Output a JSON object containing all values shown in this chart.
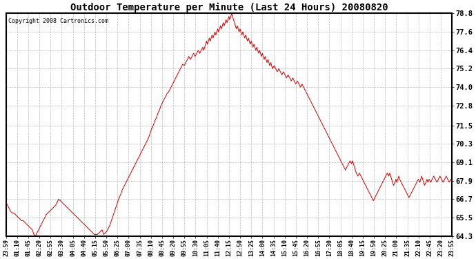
{
  "title": "Outdoor Temperature per Minute (Last 24 Hours) 20080820",
  "copyright": "Copyright 2008 Cartronics.com",
  "line_color": "#cc0000",
  "bg_color": "#ffffff",
  "plot_bg_color": "#ffffff",
  "grid_color": "#aaaaaa",
  "yticks": [
    64.3,
    65.5,
    66.7,
    67.9,
    69.1,
    70.3,
    71.5,
    72.8,
    74.0,
    75.2,
    76.4,
    77.6,
    78.8
  ],
  "xtick_labels": [
    "23:59",
    "01:10",
    "01:45",
    "02:20",
    "02:55",
    "03:30",
    "04:05",
    "04:40",
    "05:15",
    "05:50",
    "06:25",
    "07:00",
    "07:35",
    "08:10",
    "08:45",
    "09:20",
    "09:55",
    "10:30",
    "11:05",
    "11:40",
    "12:15",
    "12:50",
    "13:25",
    "14:00",
    "14:35",
    "15:10",
    "15:45",
    "16:20",
    "16:55",
    "17:30",
    "18:05",
    "18:40",
    "19:15",
    "19:50",
    "20:25",
    "21:00",
    "21:35",
    "22:10",
    "22:45",
    "23:20",
    "23:55"
  ],
  "ylim": [
    64.3,
    78.8
  ],
  "xlim": [
    0,
    1439
  ],
  "figwidth": 6.9,
  "figheight": 3.75,
  "dpi": 100,
  "temperature_data": [
    [
      0,
      66.5
    ],
    [
      5,
      66.3
    ],
    [
      10,
      66.1
    ],
    [
      15,
      65.9
    ],
    [
      20,
      65.8
    ],
    [
      25,
      65.8
    ],
    [
      30,
      65.7
    ],
    [
      35,
      65.6
    ],
    [
      40,
      65.5
    ],
    [
      45,
      65.4
    ],
    [
      50,
      65.3
    ],
    [
      55,
      65.3
    ],
    [
      60,
      65.2
    ],
    [
      65,
      65.1
    ],
    [
      70,
      65.0
    ],
    [
      75,
      64.9
    ],
    [
      80,
      64.8
    ],
    [
      85,
      64.7
    ],
    [
      90,
      64.4
    ],
    [
      95,
      64.3
    ],
    [
      100,
      64.5
    ],
    [
      105,
      64.7
    ],
    [
      110,
      64.9
    ],
    [
      115,
      65.1
    ],
    [
      120,
      65.3
    ],
    [
      125,
      65.5
    ],
    [
      130,
      65.7
    ],
    [
      135,
      65.8
    ],
    [
      140,
      65.9
    ],
    [
      145,
      66.0
    ],
    [
      150,
      66.1
    ],
    [
      155,
      66.2
    ],
    [
      160,
      66.3
    ],
    [
      165,
      66.5
    ],
    [
      170,
      66.7
    ],
    [
      175,
      66.6
    ],
    [
      180,
      66.5
    ],
    [
      185,
      66.4
    ],
    [
      190,
      66.3
    ],
    [
      195,
      66.2
    ],
    [
      200,
      66.1
    ],
    [
      205,
      66.0
    ],
    [
      210,
      65.9
    ],
    [
      215,
      65.8
    ],
    [
      220,
      65.7
    ],
    [
      225,
      65.6
    ],
    [
      230,
      65.5
    ],
    [
      235,
      65.4
    ],
    [
      240,
      65.3
    ],
    [
      245,
      65.2
    ],
    [
      250,
      65.1
    ],
    [
      255,
      65.0
    ],
    [
      260,
      64.9
    ],
    [
      265,
      64.8
    ],
    [
      270,
      64.7
    ],
    [
      275,
      64.6
    ],
    [
      280,
      64.5
    ],
    [
      285,
      64.4
    ],
    [
      290,
      64.4
    ],
    [
      295,
      64.4
    ],
    [
      300,
      64.5
    ],
    [
      305,
      64.6
    ],
    [
      310,
      64.7
    ],
    [
      315,
      64.4
    ],
    [
      320,
      64.5
    ],
    [
      325,
      64.6
    ],
    [
      330,
      64.8
    ],
    [
      335,
      65.0
    ],
    [
      340,
      65.3
    ],
    [
      345,
      65.6
    ],
    [
      350,
      65.9
    ],
    [
      355,
      66.2
    ],
    [
      360,
      66.5
    ],
    [
      365,
      66.8
    ],
    [
      370,
      67.0
    ],
    [
      375,
      67.3
    ],
    [
      380,
      67.5
    ],
    [
      385,
      67.7
    ],
    [
      390,
      67.9
    ],
    [
      395,
      68.1
    ],
    [
      400,
      68.3
    ],
    [
      405,
      68.5
    ],
    [
      410,
      68.7
    ],
    [
      415,
      68.9
    ],
    [
      420,
      69.1
    ],
    [
      425,
      69.3
    ],
    [
      430,
      69.5
    ],
    [
      435,
      69.7
    ],
    [
      440,
      69.9
    ],
    [
      445,
      70.1
    ],
    [
      450,
      70.3
    ],
    [
      455,
      70.5
    ],
    [
      460,
      70.7
    ],
    [
      465,
      71.0
    ],
    [
      470,
      71.3
    ],
    [
      475,
      71.5
    ],
    [
      480,
      71.8
    ],
    [
      485,
      72.0
    ],
    [
      490,
      72.3
    ],
    [
      495,
      72.5
    ],
    [
      500,
      72.8
    ],
    [
      505,
      73.0
    ],
    [
      510,
      73.2
    ],
    [
      515,
      73.4
    ],
    [
      520,
      73.6
    ],
    [
      525,
      73.7
    ],
    [
      530,
      73.9
    ],
    [
      535,
      74.1
    ],
    [
      540,
      74.3
    ],
    [
      545,
      74.5
    ],
    [
      550,
      74.7
    ],
    [
      555,
      74.9
    ],
    [
      560,
      75.1
    ],
    [
      565,
      75.3
    ],
    [
      570,
      75.5
    ],
    [
      575,
      75.4
    ],
    [
      580,
      75.6
    ],
    [
      585,
      75.8
    ],
    [
      590,
      76.0
    ],
    [
      595,
      75.8
    ],
    [
      600,
      76.0
    ],
    [
      605,
      76.2
    ],
    [
      610,
      76.0
    ],
    [
      615,
      76.2
    ],
    [
      620,
      76.4
    ],
    [
      625,
      76.2
    ],
    [
      630,
      76.4
    ],
    [
      635,
      76.6
    ],
    [
      638,
      76.4
    ],
    [
      641,
      76.6
    ],
    [
      644,
      76.8
    ],
    [
      647,
      77.0
    ],
    [
      650,
      76.8
    ],
    [
      653,
      77.0
    ],
    [
      656,
      77.2
    ],
    [
      659,
      77.0
    ],
    [
      662,
      77.2
    ],
    [
      665,
      77.4
    ],
    [
      668,
      77.2
    ],
    [
      671,
      77.4
    ],
    [
      674,
      77.6
    ],
    [
      677,
      77.4
    ],
    [
      680,
      77.6
    ],
    [
      683,
      77.8
    ],
    [
      686,
      77.6
    ],
    [
      689,
      77.8
    ],
    [
      692,
      78.0
    ],
    [
      695,
      77.8
    ],
    [
      698,
      78.0
    ],
    [
      701,
      78.2
    ],
    [
      704,
      78.0
    ],
    [
      707,
      78.2
    ],
    [
      710,
      78.4
    ],
    [
      713,
      78.2
    ],
    [
      716,
      78.4
    ],
    [
      719,
      78.6
    ],
    [
      722,
      78.4
    ],
    [
      725,
      78.6
    ],
    [
      728,
      78.8
    ],
    [
      731,
      78.6
    ],
    [
      734,
      78.4
    ],
    [
      737,
      78.2
    ],
    [
      740,
      78.0
    ],
    [
      743,
      77.8
    ],
    [
      746,
      78.0
    ],
    [
      749,
      77.8
    ],
    [
      752,
      77.6
    ],
    [
      755,
      77.8
    ],
    [
      758,
      77.6
    ],
    [
      761,
      77.4
    ],
    [
      764,
      77.6
    ],
    [
      767,
      77.4
    ],
    [
      770,
      77.2
    ],
    [
      773,
      77.4
    ],
    [
      776,
      77.2
    ],
    [
      779,
      77.0
    ],
    [
      782,
      77.2
    ],
    [
      785,
      77.0
    ],
    [
      788,
      76.8
    ],
    [
      791,
      77.0
    ],
    [
      794,
      76.8
    ],
    [
      797,
      76.6
    ],
    [
      800,
      76.8
    ],
    [
      803,
      76.6
    ],
    [
      806,
      76.4
    ],
    [
      809,
      76.6
    ],
    [
      812,
      76.4
    ],
    [
      815,
      76.2
    ],
    [
      818,
      76.4
    ],
    [
      821,
      76.2
    ],
    [
      824,
      76.0
    ],
    [
      827,
      76.2
    ],
    [
      830,
      76.0
    ],
    [
      833,
      75.8
    ],
    [
      836,
      76.0
    ],
    [
      839,
      75.8
    ],
    [
      842,
      75.6
    ],
    [
      845,
      75.8
    ],
    [
      848,
      75.6
    ],
    [
      851,
      75.4
    ],
    [
      854,
      75.6
    ],
    [
      857,
      75.4
    ],
    [
      860,
      75.2
    ],
    [
      865,
      75.4
    ],
    [
      870,
      75.2
    ],
    [
      875,
      75.0
    ],
    [
      880,
      75.2
    ],
    [
      885,
      75.0
    ],
    [
      890,
      74.8
    ],
    [
      895,
      75.0
    ],
    [
      900,
      74.8
    ],
    [
      905,
      74.6
    ],
    [
      910,
      74.8
    ],
    [
      915,
      74.6
    ],
    [
      920,
      74.4
    ],
    [
      925,
      74.6
    ],
    [
      930,
      74.4
    ],
    [
      935,
      74.2
    ],
    [
      940,
      74.4
    ],
    [
      945,
      74.2
    ],
    [
      950,
      74.0
    ],
    [
      955,
      74.2
    ],
    [
      960,
      74.0
    ],
    [
      965,
      73.8
    ],
    [
      970,
      73.6
    ],
    [
      975,
      73.4
    ],
    [
      980,
      73.2
    ],
    [
      985,
      73.0
    ],
    [
      990,
      72.8
    ],
    [
      995,
      72.6
    ],
    [
      1000,
      72.4
    ],
    [
      1005,
      72.2
    ],
    [
      1010,
      72.0
    ],
    [
      1015,
      71.8
    ],
    [
      1020,
      71.6
    ],
    [
      1025,
      71.4
    ],
    [
      1030,
      71.2
    ],
    [
      1035,
      71.0
    ],
    [
      1040,
      70.8
    ],
    [
      1045,
      70.6
    ],
    [
      1050,
      70.4
    ],
    [
      1055,
      70.2
    ],
    [
      1060,
      70.0
    ],
    [
      1065,
      69.8
    ],
    [
      1070,
      69.6
    ],
    [
      1075,
      69.4
    ],
    [
      1080,
      69.2
    ],
    [
      1085,
      69.0
    ],
    [
      1090,
      68.8
    ],
    [
      1095,
      68.6
    ],
    [
      1100,
      68.8
    ],
    [
      1105,
      69.0
    ],
    [
      1110,
      69.2
    ],
    [
      1115,
      69.0
    ],
    [
      1118,
      69.2
    ],
    [
      1121,
      69.0
    ],
    [
      1124,
      68.8
    ],
    [
      1127,
      68.6
    ],
    [
      1130,
      68.4
    ],
    [
      1135,
      68.2
    ],
    [
      1140,
      68.4
    ],
    [
      1145,
      68.2
    ],
    [
      1150,
      68.0
    ],
    [
      1155,
      67.8
    ],
    [
      1160,
      67.6
    ],
    [
      1165,
      67.4
    ],
    [
      1170,
      67.2
    ],
    [
      1175,
      67.0
    ],
    [
      1180,
      66.8
    ],
    [
      1185,
      66.6
    ],
    [
      1190,
      66.8
    ],
    [
      1195,
      67.0
    ],
    [
      1200,
      67.2
    ],
    [
      1205,
      67.4
    ],
    [
      1210,
      67.6
    ],
    [
      1215,
      67.8
    ],
    [
      1220,
      68.0
    ],
    [
      1225,
      68.2
    ],
    [
      1230,
      68.4
    ],
    [
      1235,
      68.2
    ],
    [
      1238,
      68.4
    ],
    [
      1241,
      68.2
    ],
    [
      1244,
      68.0
    ],
    [
      1247,
      67.8
    ],
    [
      1250,
      67.6
    ],
    [
      1255,
      67.8
    ],
    [
      1258,
      68.0
    ],
    [
      1261,
      67.8
    ],
    [
      1264,
      68.0
    ],
    [
      1267,
      68.2
    ],
    [
      1270,
      68.0
    ],
    [
      1275,
      67.8
    ],
    [
      1280,
      67.6
    ],
    [
      1285,
      67.4
    ],
    [
      1290,
      67.2
    ],
    [
      1295,
      67.0
    ],
    [
      1300,
      66.8
    ],
    [
      1305,
      67.0
    ],
    [
      1310,
      67.2
    ],
    [
      1315,
      67.4
    ],
    [
      1320,
      67.6
    ],
    [
      1325,
      67.8
    ],
    [
      1330,
      68.0
    ],
    [
      1335,
      67.8
    ],
    [
      1338,
      68.0
    ],
    [
      1341,
      68.2
    ],
    [
      1344,
      68.0
    ],
    [
      1347,
      67.8
    ],
    [
      1350,
      67.6
    ],
    [
      1355,
      67.8
    ],
    [
      1358,
      68.0
    ],
    [
      1361,
      67.8
    ],
    [
      1365,
      68.0
    ],
    [
      1370,
      67.8
    ],
    [
      1375,
      68.0
    ],
    [
      1380,
      68.2
    ],
    [
      1385,
      68.0
    ],
    [
      1390,
      67.8
    ],
    [
      1395,
      68.0
    ],
    [
      1400,
      68.2
    ],
    [
      1405,
      68.0
    ],
    [
      1410,
      67.8
    ],
    [
      1415,
      68.0
    ],
    [
      1420,
      68.2
    ],
    [
      1425,
      68.0
    ],
    [
      1430,
      67.8
    ],
    [
      1435,
      68.0
    ],
    [
      1439,
      67.9
    ]
  ]
}
